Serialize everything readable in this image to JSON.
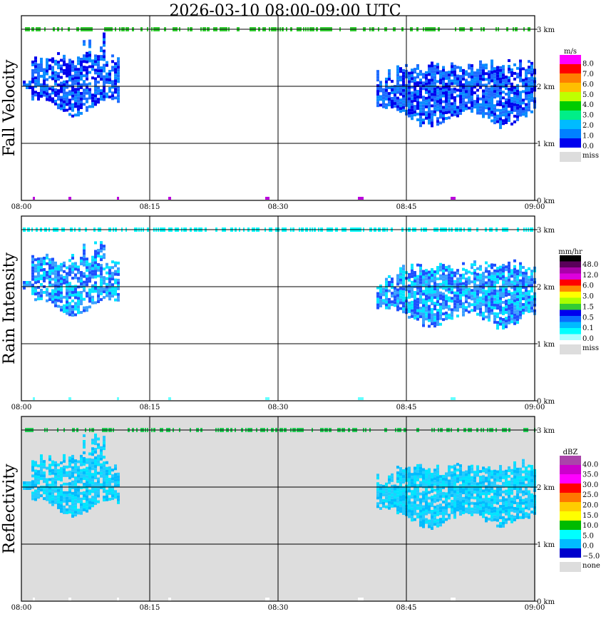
{
  "title": "2026-03-10   08:00-09:00 UTC",
  "x_ticks": [
    "08:00",
    "08:15",
    "08:30",
    "08:45",
    "09:00"
  ],
  "y_ticks": [
    "0 km",
    "1 km",
    "2 km",
    "3 km"
  ],
  "panels": [
    {
      "name": "fall-velocity",
      "ylabel": "Fall Velocity",
      "unit": "m/s",
      "legend_labels": [
        "8.0",
        "7.0",
        "6.0",
        "5.0",
        "4.0",
        "3.0",
        "2.0",
        "1.0",
        "0.0"
      ],
      "legend_colors": [
        "#ff00ff",
        "#ff0000",
        "#ff7f00",
        "#ffbf00",
        "#bfff00",
        "#00cc00",
        "#00ee88",
        "#00bbff",
        "#0080ff",
        "#0000ee"
      ],
      "miss_label": "miss",
      "background": "#ffffff",
      "precip_colors": [
        "#0000ee",
        "#1e6cff",
        "#0a8cff"
      ],
      "band_color": "#33cc33",
      "ground_color": "#bb00dd"
    },
    {
      "name": "rain-intensity",
      "ylabel": "Rain Intensity",
      "unit": "mm/hr",
      "legend_labels": [
        "48.0",
        "12.0",
        "6.0",
        "3.0",
        "1.5",
        "0.5",
        "0.1",
        "0.0"
      ],
      "legend_colors": [
        "#000000",
        "#5a005a",
        "#aa00aa",
        "#dd00dd",
        "#ff0000",
        "#ff8800",
        "#ffff00",
        "#aaff00",
        "#33cc33",
        "#0000ee",
        "#0a6cff",
        "#00bbff",
        "#00ffff",
        "#aaffff"
      ],
      "miss_label": "miss",
      "background": "#ffffff",
      "precip_colors": [
        "#00e5ff",
        "#3aa0ff",
        "#1e50ff"
      ],
      "band_color": "#00ffff",
      "ground_color": "#66ffff"
    },
    {
      "name": "reflectivity",
      "ylabel": "Reflectivity",
      "unit": "dBZ",
      "legend_labels": [
        "40.0",
        "35.0",
        "30.0",
        "25.0",
        "20.0",
        "15.0",
        "10.0",
        "5.0",
        "0.0",
        "−5.0"
      ],
      "legend_colors": [
        "#aa44aa",
        "#cc00cc",
        "#ff00ff",
        "#ff0000",
        "#ff7700",
        "#ffcc00",
        "#ffff00",
        "#00bb00",
        "#00ffff",
        "#00bbff",
        "#0000cc"
      ],
      "miss_label": "none",
      "background": "#dddddd",
      "precip_colors": [
        "#00e5ff",
        "#00bbff",
        "#22ccff"
      ],
      "band_color": "#22cc55",
      "ground_color": "#ffffff"
    }
  ],
  "chart_data": [
    {
      "type": "heatmap",
      "title": "2026-03-10   08:00-09:00 UTC",
      "ylabel": "Fall Velocity",
      "colorbar_unit": "m/s",
      "x_range": [
        "08:00",
        "09:00"
      ],
      "y_range_km": [
        0,
        3.3
      ],
      "precip_cells": [
        {
          "start": "08:00",
          "end": "08:11",
          "base_km": 1.65,
          "top_km": 2.5,
          "peak_km": 2.9
        },
        {
          "start": "08:41",
          "end": "09:00",
          "base_km": 1.55,
          "top_km": 2.35,
          "peak_km": 2.6
        }
      ]
    },
    {
      "type": "heatmap",
      "ylabel": "Rain Intensity",
      "colorbar_unit": "mm/hr",
      "x_range": [
        "08:00",
        "09:00"
      ],
      "y_range_km": [
        0,
        3.3
      ]
    },
    {
      "type": "heatmap",
      "ylabel": "Reflectivity",
      "colorbar_unit": "dBZ",
      "x_range": [
        "08:00",
        "09:00"
      ],
      "y_range_km": [
        0,
        3.3
      ]
    }
  ]
}
